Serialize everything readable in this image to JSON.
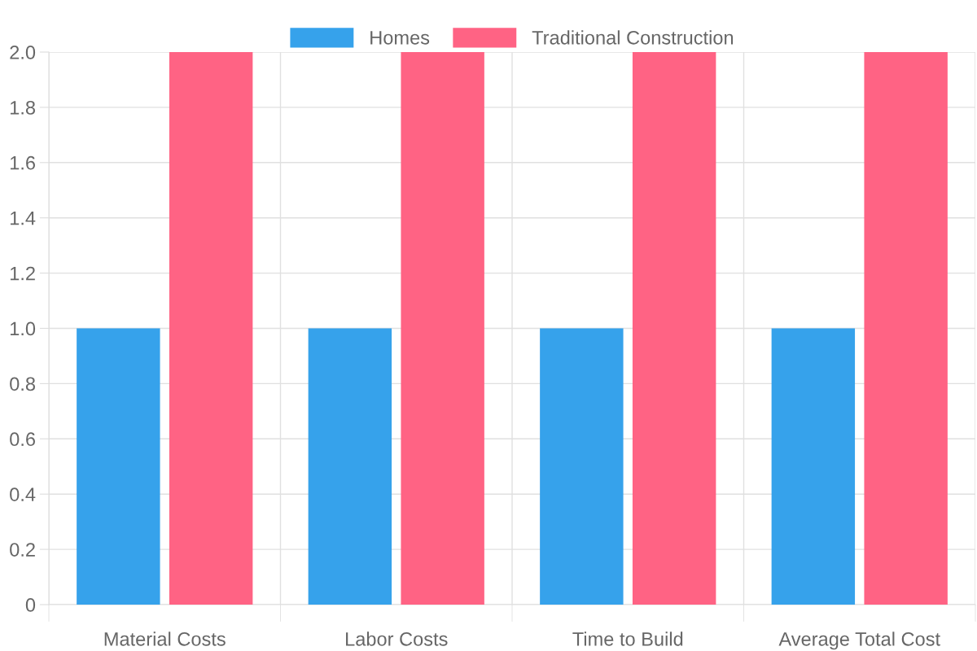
{
  "chart_data": {
    "type": "bar",
    "categories": [
      "Material Costs",
      "Labor Costs",
      "Time to Build",
      "Average Total Cost"
    ],
    "series": [
      {
        "name": "Homes",
        "color": "#36a2eb",
        "values": [
          1,
          1,
          1,
          1
        ]
      },
      {
        "name": "Traditional Construction",
        "color": "#ff6384",
        "values": [
          2,
          2,
          2,
          2
        ]
      }
    ],
    "ylim": [
      0,
      2
    ],
    "yticks": [
      0,
      0.2,
      0.4,
      0.6,
      0.8,
      {
        "value": 1,
        "label": "1.0"
      },
      1.2,
      1.4,
      1.6,
      1.8,
      {
        "value": 2,
        "label": "2.0"
      }
    ],
    "grid": true,
    "legend": "top"
  }
}
